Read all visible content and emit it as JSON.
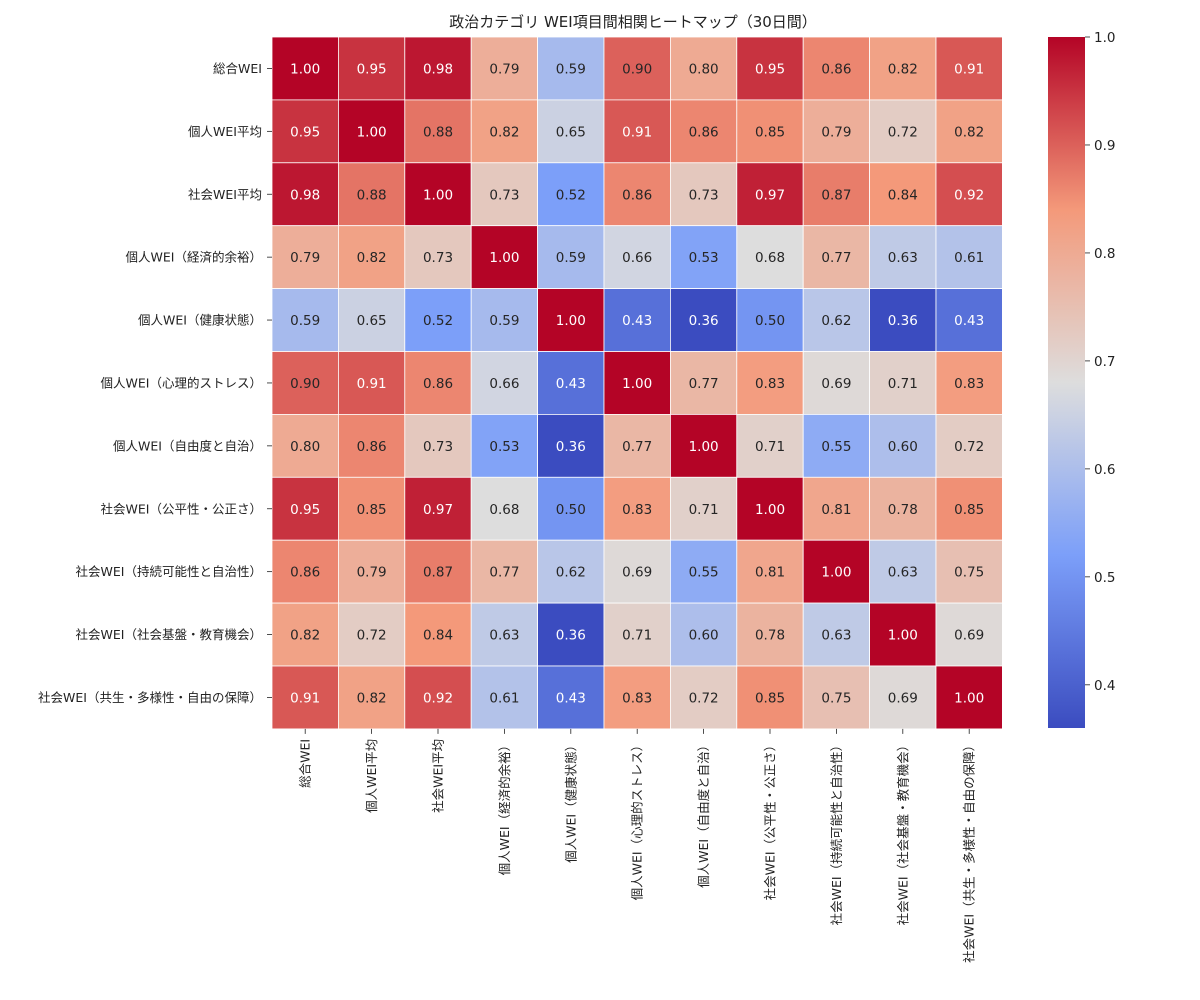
{
  "chart_data": {
    "type": "heatmap",
    "title": "政治カテゴリ WEI項目間相関ヒートマップ（30日間）",
    "categories": [
      "総合WEI",
      "個人WEI平均",
      "社会WEI平均",
      "個人WEI（経済的余裕）",
      "個人WEI（健康状態）",
      "個人WEI（心理的ストレス）",
      "個人WEI（自由度と自治）",
      "社会WEI（公平性・公正さ）",
      "社会WEI（持続可能性と自治性）",
      "社会WEI（社会基盤・教育機会）",
      "社会WEI（共生・多様性・自由の保障）"
    ],
    "values": [
      [
        1.0,
        0.95,
        0.98,
        0.79,
        0.59,
        0.9,
        0.8,
        0.95,
        0.86,
        0.82,
        0.91
      ],
      [
        0.95,
        1.0,
        0.88,
        0.82,
        0.65,
        0.91,
        0.86,
        0.85,
        0.79,
        0.72,
        0.82
      ],
      [
        0.98,
        0.88,
        1.0,
        0.73,
        0.52,
        0.86,
        0.73,
        0.97,
        0.87,
        0.84,
        0.92
      ],
      [
        0.79,
        0.82,
        0.73,
        1.0,
        0.59,
        0.66,
        0.53,
        0.68,
        0.77,
        0.63,
        0.61
      ],
      [
        0.59,
        0.65,
        0.52,
        0.59,
        1.0,
        0.43,
        0.36,
        0.5,
        0.62,
        0.36,
        0.43
      ],
      [
        0.9,
        0.91,
        0.86,
        0.66,
        0.43,
        1.0,
        0.77,
        0.83,
        0.69,
        0.71,
        0.83
      ],
      [
        0.8,
        0.86,
        0.73,
        0.53,
        0.36,
        0.77,
        1.0,
        0.71,
        0.55,
        0.6,
        0.72
      ],
      [
        0.95,
        0.85,
        0.97,
        0.68,
        0.5,
        0.83,
        0.71,
        1.0,
        0.81,
        0.78,
        0.85
      ],
      [
        0.86,
        0.79,
        0.87,
        0.77,
        0.62,
        0.69,
        0.55,
        0.81,
        1.0,
        0.63,
        0.75
      ],
      [
        0.82,
        0.72,
        0.84,
        0.63,
        0.36,
        0.71,
        0.6,
        0.78,
        0.63,
        1.0,
        0.69
      ],
      [
        0.91,
        0.82,
        0.92,
        0.61,
        0.43,
        0.83,
        0.72,
        0.85,
        0.75,
        0.69,
        1.0
      ]
    ],
    "value_range": [
      0.36,
      1.0
    ],
    "colormap": "coolwarm",
    "colorbar_ticks": [
      "0.4",
      "0.5",
      "0.6",
      "0.7",
      "0.8",
      "0.9",
      "1.0"
    ],
    "colorbar_tick_values": [
      0.4,
      0.5,
      0.6,
      0.7,
      0.8,
      0.9,
      1.0
    ],
    "annotations_format": "0.00",
    "cell_border_color": "#ffffff"
  }
}
